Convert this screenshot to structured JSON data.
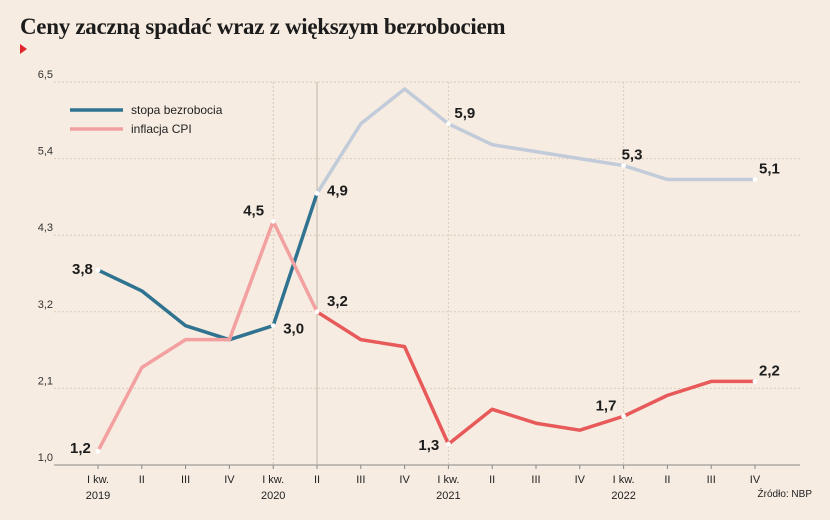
{
  "header": {
    "title": "Ceny zaczną spadać wraz z większym bezrobociem"
  },
  "source": "Źródło: NBP",
  "chart_data": {
    "type": "line",
    "title": "Ceny zaczną spadać wraz z większym bezrobociem",
    "xlabel": "",
    "ylabel": "",
    "ylim": [
      1.0,
      6.5
    ],
    "yticks": [
      "1,0",
      "2,1",
      "3,2",
      "4,3",
      "5,4",
      "6,5"
    ],
    "ytick_values": [
      1.0,
      2.1,
      3.2,
      4.3,
      5.4,
      6.5
    ],
    "grid": true,
    "legend_position": "top-left",
    "categories": [
      "I kw. 2019",
      "II",
      "III",
      "IV",
      "I kw. 2020",
      "II",
      "III",
      "IV",
      "I kw. 2021",
      "II",
      "III",
      "IV",
      "I kw. 2022",
      "II",
      "III",
      "IV"
    ],
    "x_labels": [
      {
        "top": "I kw.",
        "bottom": "2019"
      },
      {
        "top": "II",
        "bottom": ""
      },
      {
        "top": "III",
        "bottom": ""
      },
      {
        "top": "IV",
        "bottom": ""
      },
      {
        "top": "I kw.",
        "bottom": "2020"
      },
      {
        "top": "II",
        "bottom": ""
      },
      {
        "top": "III",
        "bottom": ""
      },
      {
        "top": "IV",
        "bottom": ""
      },
      {
        "top": "I kw.",
        "bottom": "2021"
      },
      {
        "top": "II",
        "bottom": ""
      },
      {
        "top": "III",
        "bottom": ""
      },
      {
        "top": "IV",
        "bottom": ""
      },
      {
        "top": "I kw.",
        "bottom": "2022"
      },
      {
        "top": "II",
        "bottom": ""
      },
      {
        "top": "III",
        "bottom": ""
      },
      {
        "top": "IV",
        "bottom": ""
      }
    ],
    "projection_start_index": 5,
    "series": [
      {
        "name": "stopa bezrobocia",
        "color": "#2f7391",
        "projection_color": "#c2cbd9",
        "values": [
          3.8,
          3.5,
          3.0,
          2.8,
          3.0,
          4.9,
          5.9,
          6.4,
          5.9,
          5.6,
          5.5,
          5.4,
          5.3,
          5.1,
          5.1,
          5.1
        ]
      },
      {
        "name": "inflacja CPI",
        "color": "#f2a0a0",
        "projection_color": "#e85a5a",
        "values": [
          1.2,
          2.4,
          2.8,
          2.8,
          4.5,
          3.2,
          2.8,
          2.7,
          1.3,
          1.8,
          1.6,
          1.5,
          1.7,
          2.0,
          2.2,
          2.2
        ]
      }
    ],
    "data_labels": [
      {
        "series": 0,
        "index": 0,
        "text": "3,8"
      },
      {
        "series": 0,
        "index": 4,
        "text": "3,0"
      },
      {
        "series": 0,
        "index": 5,
        "text": "4,9"
      },
      {
        "series": 0,
        "index": 8,
        "text": "5,9"
      },
      {
        "series": 0,
        "index": 12,
        "text": "5,3"
      },
      {
        "series": 0,
        "index": 15,
        "text": "5,1"
      },
      {
        "series": 1,
        "index": 0,
        "text": "1,2"
      },
      {
        "series": 1,
        "index": 4,
        "text": "4,5"
      },
      {
        "series": 1,
        "index": 5,
        "text": "3,2"
      },
      {
        "series": 1,
        "index": 8,
        "text": "1,3"
      },
      {
        "series": 1,
        "index": 12,
        "text": "1,7"
      },
      {
        "series": 1,
        "index": 15,
        "text": "2,2"
      }
    ]
  }
}
